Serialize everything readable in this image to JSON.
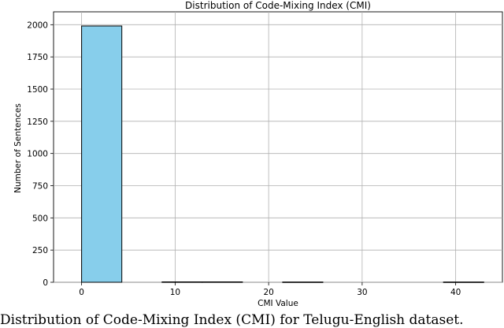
{
  "chart_data": {
    "type": "bar",
    "title": "Distribution of Code-Mixing Index (CMI)",
    "xlabel": "CMI Value",
    "ylabel": "Number of Sentences",
    "xlim": [
      -3.0,
      45.0
    ],
    "ylim": [
      0,
      2100
    ],
    "xticks": [
      0,
      10,
      20,
      30,
      40
    ],
    "yticks": [
      0,
      250,
      500,
      750,
      1000,
      1250,
      1500,
      1750,
      2000
    ],
    "grid": true,
    "bar_color": "#87CEEB",
    "bar_edge_color": "#000000",
    "bins": [
      {
        "x0": 0.0,
        "x1": 4.3,
        "value": 1990
      },
      {
        "x0": 4.3,
        "x1": 8.6,
        "value": 0
      },
      {
        "x0": 8.6,
        "x1": 12.9,
        "value": 3
      },
      {
        "x0": 12.9,
        "x1": 17.2,
        "value": 3
      },
      {
        "x0": 17.2,
        "x1": 21.5,
        "value": 0
      },
      {
        "x0": 21.5,
        "x1": 25.8,
        "value": 2
      },
      {
        "x0": 25.8,
        "x1": 30.1,
        "value": 0
      },
      {
        "x0": 30.1,
        "x1": 34.4,
        "value": 0
      },
      {
        "x0": 34.4,
        "x1": 38.7,
        "value": 0
      },
      {
        "x0": 38.7,
        "x1": 43.0,
        "value": 2
      }
    ]
  },
  "caption": "Distribution of Code-Mixing Index (CMI) for Telugu-English dataset."
}
